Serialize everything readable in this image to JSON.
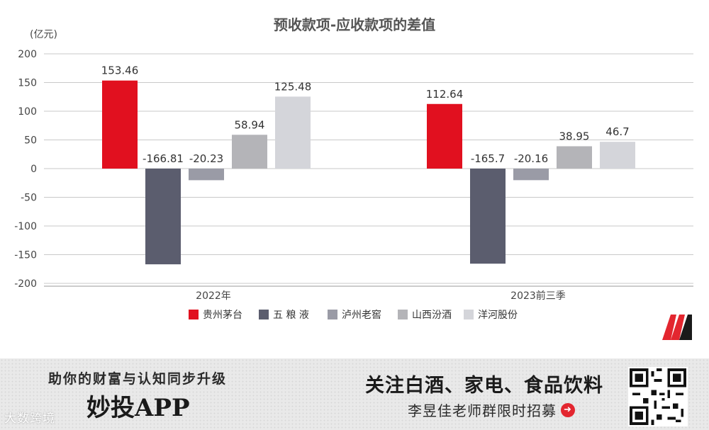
{
  "chart_data": {
    "type": "bar",
    "title": "预收款项-应收款项的差值",
    "ylabel": "(亿元)",
    "ylim": [
      -200,
      200
    ],
    "yticks": [
      200,
      150,
      100,
      50,
      0,
      -50,
      -100,
      -150,
      -200
    ],
    "categories": [
      "2022年",
      "2023前三季"
    ],
    "series": [
      {
        "name": "贵州茅台",
        "values": [
          153.46,
          112.64
        ],
        "labels": [
          "153.46",
          "112.64"
        ],
        "color": "#e1101f"
      },
      {
        "name": "五 粮 液",
        "values": [
          -166.81,
          -165.7
        ],
        "labels": [
          "-166.81",
          "-165.7"
        ],
        "color": "#5b5d6e"
      },
      {
        "name": "泸州老窖",
        "values": [
          -20.23,
          -20.16
        ],
        "labels": [
          "-20.23",
          "-20.16"
        ],
        "color": "#9a9ba6"
      },
      {
        "name": "山西汾酒",
        "values": [
          58.94,
          38.95
        ],
        "labels": [
          "58.94",
          "38.95"
        ],
        "color": "#b4b4b8"
      },
      {
        "name": "洋河股份",
        "values": [
          125.48,
          46.7
        ],
        "labels": [
          "125.48",
          "46.7"
        ],
        "color": "#d4d5da"
      }
    ],
    "grid": true,
    "legend": "bottom"
  },
  "banner": {
    "left_tagline": "助你的财富与认知同步升级",
    "left_brand": "妙投APP",
    "right_headline": "关注白酒、家电、食品饮料",
    "right_sub": "李昱佳老师群限时招募"
  },
  "watermark": "大数跨境",
  "icons": {
    "logo": "m-logo-icon",
    "qr": "qr-code-icon",
    "arrow": "arrow-right-circle-icon"
  }
}
